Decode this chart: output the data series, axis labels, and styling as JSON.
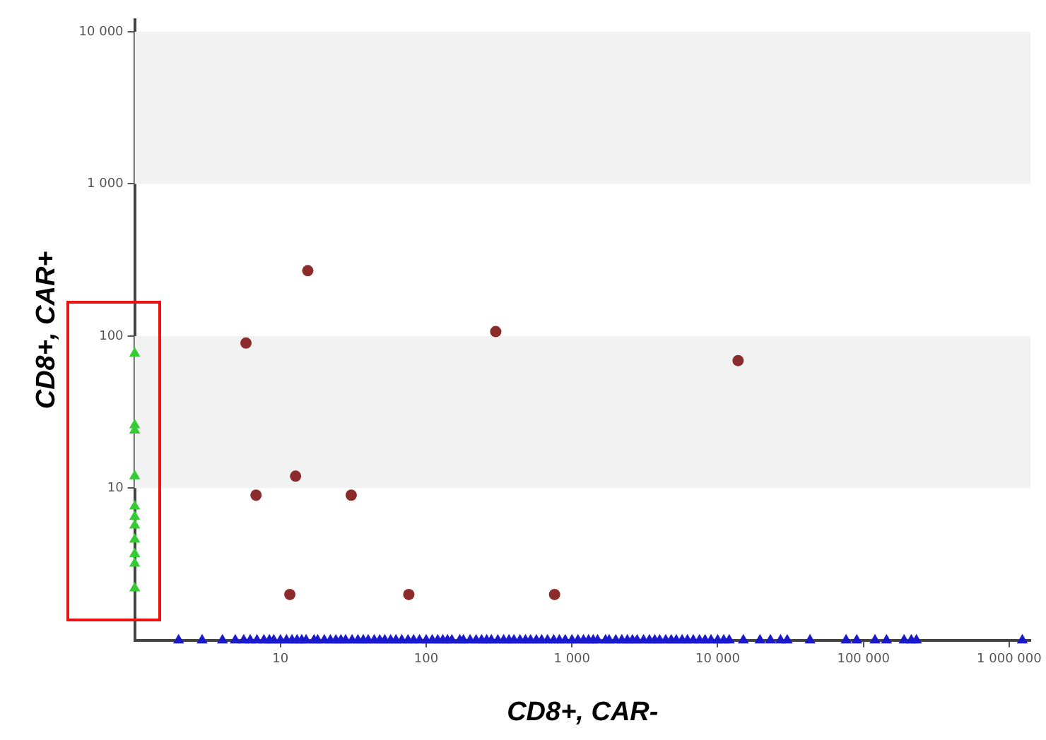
{
  "chart_data": {
    "type": "scatter",
    "xlabel": "CD8+, CAR-",
    "ylabel": "CD8+, CAR+",
    "log": "xy",
    "grid": false,
    "legend": false,
    "xlim": [
      1,
      1400000
    ],
    "ylim": [
      1,
      12000
    ],
    "xticks": [
      10,
      100,
      {
        "value": 1000,
        "label": "1 000"
      },
      {
        "value": 10000,
        "label": "10 000"
      },
      {
        "value": 100000,
        "label": "100 000"
      },
      {
        "value": 1000000,
        "label": "1 000 000"
      }
    ],
    "yticks": [
      10,
      100,
      {
        "value": 1000,
        "label": "1 000"
      },
      {
        "value": 10000,
        "label": "10 000"
      }
    ],
    "bands": [
      {
        "axis": "y",
        "from": 10,
        "to": 100,
        "color": "#f2f2f2"
      },
      {
        "axis": "y",
        "from": 1000,
        "to": 10000,
        "color": "#f2f2f2"
      }
    ],
    "series": [
      {
        "color": "#8b2b2b",
        "marker": "circle",
        "x": [
          5.8,
          15.4,
          6.8,
          12.7,
          30.6,
          11.6,
          76,
          300,
          760,
          13800
        ],
        "values": [
          90,
          269,
          9,
          12,
          9,
          2,
          2,
          107,
          2,
          69
        ]
      },
      {
        "color": "#33cc33",
        "marker": "triangle",
        "x": [
          1,
          1,
          1,
          1,
          1,
          1,
          1,
          1,
          1,
          1,
          1
        ],
        "values": [
          77,
          26,
          24,
          12,
          7.6,
          6.5,
          5.7,
          4.6,
          3.7,
          3.2,
          2.2
        ]
      },
      {
        "color": "#1a1acc",
        "marker": "triangle",
        "x": [
          2,
          2.9,
          4,
          4.9,
          5.6,
          6.2,
          6.9,
          7.7,
          8.4,
          9,
          10,
          11,
          12,
          13,
          14,
          15,
          17,
          18,
          20,
          22,
          24,
          26,
          28,
          31,
          34,
          37,
          40,
          44,
          48,
          52,
          57,
          62,
          68,
          75,
          82,
          90,
          100,
          110,
          120,
          130,
          140,
          150,
          170,
          180,
          200,
          220,
          240,
          260,
          280,
          310,
          340,
          370,
          400,
          440,
          480,
          520,
          570,
          620,
          680,
          750,
          820,
          900,
          1000,
          1100,
          1200,
          1300,
          1400,
          1500,
          1700,
          1800,
          2000,
          2200,
          2400,
          2600,
          2800,
          3100,
          3400,
          3700,
          4000,
          4400,
          4800,
          5200,
          5700,
          6200,
          6800,
          7500,
          8200,
          9000,
          10000,
          11000,
          12000,
          15000,
          19500,
          23000,
          27000,
          30000,
          43000,
          76000,
          90000,
          120000,
          144000,
          190000,
          213000,
          231000,
          1230000
        ],
        "values": [
          1,
          1,
          1,
          1,
          1,
          1,
          1,
          1,
          1,
          1,
          1,
          1,
          1,
          1,
          1,
          1,
          1,
          1,
          1,
          1,
          1,
          1,
          1,
          1,
          1,
          1,
          1,
          1,
          1,
          1,
          1,
          1,
          1,
          1,
          1,
          1,
          1,
          1,
          1,
          1,
          1,
          1,
          1,
          1,
          1,
          1,
          1,
          1,
          1,
          1,
          1,
          1,
          1,
          1,
          1,
          1,
          1,
          1,
          1,
          1,
          1,
          1,
          1,
          1,
          1,
          1,
          1,
          1,
          1,
          1,
          1,
          1,
          1,
          1,
          1,
          1,
          1,
          1,
          1,
          1,
          1,
          1,
          1,
          1,
          1,
          1,
          1,
          1,
          1,
          1,
          1,
          1,
          1,
          1,
          1,
          1,
          1,
          1,
          1,
          1,
          1,
          1,
          1,
          1,
          1
        ]
      }
    ]
  }
}
